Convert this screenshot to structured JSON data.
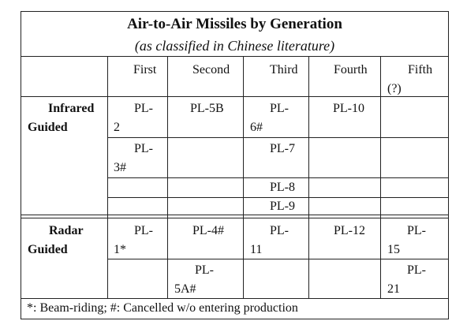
{
  "title": "Air-to-Air Missiles by Generation",
  "subtitle": "(as classified in Chinese literature)",
  "generations": [
    "First",
    "Second",
    "Third",
    "Fourth",
    "Fifth"
  ],
  "fifth_note": "(?)",
  "groups": [
    {
      "name_line1": "Infrared",
      "name_line2": "Guided"
    },
    {
      "name_line1": "Radar",
      "name_line2": "Guided"
    }
  ],
  "cells": {
    "ir_r1_first": [
      "PL-",
      "2"
    ],
    "ir_r1_second": "PL-5B",
    "ir_r1_third": [
      "PL-",
      "6#"
    ],
    "ir_r1_fourth": "PL-10",
    "ir_r2_first": [
      "PL-",
      "3#"
    ],
    "ir_r2_third": "PL-7",
    "ir_r3_third": "PL-8",
    "ir_r4_third": "PL-9",
    "rd_r1_first": [
      "PL-",
      "1*"
    ],
    "rd_r1_second": "PL-4#",
    "rd_r1_third": [
      "PL-",
      "11"
    ],
    "rd_r1_fourth": "PL-12",
    "rd_r1_fifth": [
      "PL-",
      "15"
    ],
    "rd_r2_second": [
      "PL-",
      "5A#"
    ],
    "rd_r2_fifth": [
      "PL-",
      "21"
    ]
  },
  "footnote": "*: Beam-riding;  #: Cancelled w/o entering production"
}
